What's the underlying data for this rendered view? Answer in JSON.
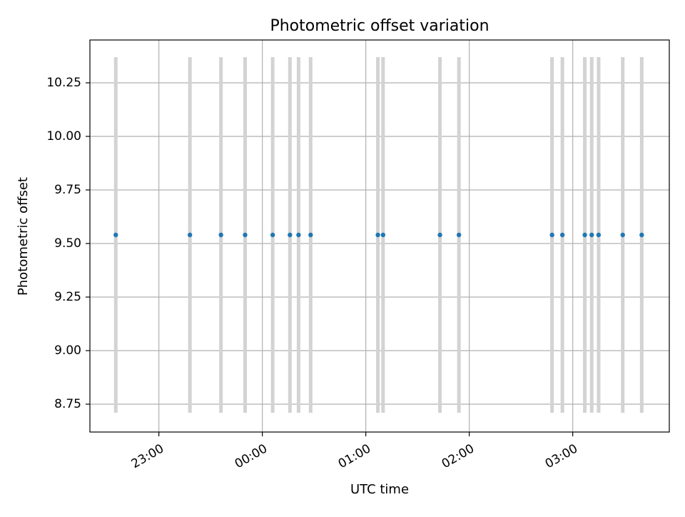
{
  "chart_data": {
    "type": "scatter",
    "title": "Photometric offset variation",
    "xlabel": "UTC time",
    "ylabel": "Photometric offset",
    "x_axis_type": "time",
    "xlim": [
      "22:20",
      "03:56"
    ],
    "ylim": [
      8.62,
      10.45
    ],
    "grid": true,
    "x_ticks": [
      "23:00",
      "00:00",
      "01:00",
      "02:00",
      "03:00"
    ],
    "y_ticks": [
      "8.75",
      "9.00",
      "9.25",
      "9.50",
      "9.75",
      "10.00",
      "10.25"
    ],
    "y_tick_values": [
      8.75,
      9.0,
      9.25,
      9.5,
      9.75,
      10.0,
      10.25
    ],
    "point_color": "#1f77b4",
    "errorbar_color": "#d3d3d3",
    "errorbar_range": [
      8.71,
      10.37
    ],
    "series": [
      {
        "x": [
          "22:35",
          "23:18",
          "23:36",
          "23:50",
          "00:06",
          "00:16",
          "00:21",
          "00:28",
          "01:07",
          "01:10",
          "01:43",
          "01:54",
          "02:48",
          "02:54",
          "03:07",
          "03:11",
          "03:15",
          "03:29",
          "03:40"
        ],
        "y": [
          9.54,
          9.54,
          9.54,
          9.54,
          9.54,
          9.54,
          9.54,
          9.54,
          9.54,
          9.54,
          9.54,
          9.54,
          9.54,
          9.54,
          9.54,
          9.54,
          9.54,
          9.54,
          9.54
        ]
      }
    ]
  }
}
